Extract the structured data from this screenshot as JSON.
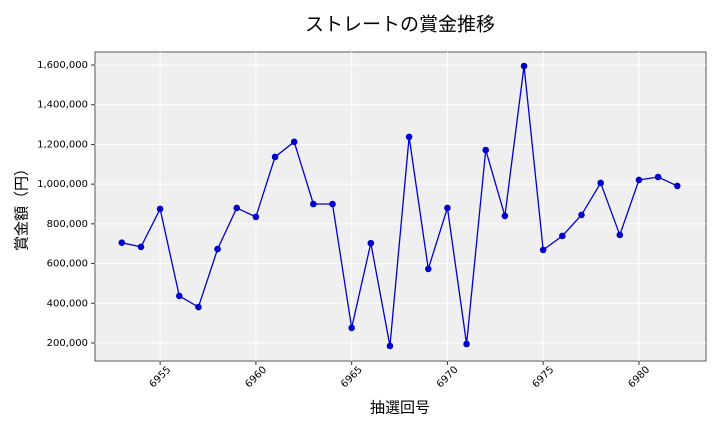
{
  "chart_data": {
    "type": "line",
    "title": "ストレートの賞金推移",
    "xlabel": "抽選回号",
    "ylabel": "賞金額（円）",
    "x": [
      6953,
      6954,
      6955,
      6956,
      6957,
      6958,
      6959,
      6960,
      6961,
      6962,
      6963,
      6964,
      6965,
      6966,
      6967,
      6968,
      6969,
      6970,
      6971,
      6972,
      6973,
      6974,
      6975,
      6976,
      6977,
      6978,
      6979,
      6980,
      6981,
      6982
    ],
    "series": [
      {
        "name": "ストレート",
        "color": "#0000cc",
        "values": [
          705000,
          684000,
          875000,
          437000,
          381000,
          673000,
          880000,
          835000,
          1137000,
          1213000,
          900000,
          900000,
          276000,
          703000,
          185000,
          1238000,
          573000,
          880000,
          195000,
          1172000,
          840000,
          1595000,
          669000,
          739000,
          845000,
          1006000,
          744000,
          1021000,
          1036000,
          991000
        ]
      }
    ],
    "xlim": [
      6951.6,
      6983.5
    ],
    "xticks": [
      6955,
      6960,
      6965,
      6970,
      6975,
      6980
    ],
    "ylim": [
      109300,
      1665500
    ],
    "yticks": [
      {
        "value": 200000,
        "label": "200,000"
      },
      {
        "value": 400000,
        "label": "400,000"
      },
      {
        "value": 600000,
        "label": "600,000"
      },
      {
        "value": 800000,
        "label": "800,000"
      },
      {
        "value": 1000000,
        "label": "1,000,000"
      },
      {
        "value": 1200000,
        "label": "1,200,000"
      },
      {
        "value": 1400000,
        "label": "1,400,000"
      },
      {
        "value": 1600000,
        "label": "1,600,000"
      }
    ],
    "grid": true
  }
}
